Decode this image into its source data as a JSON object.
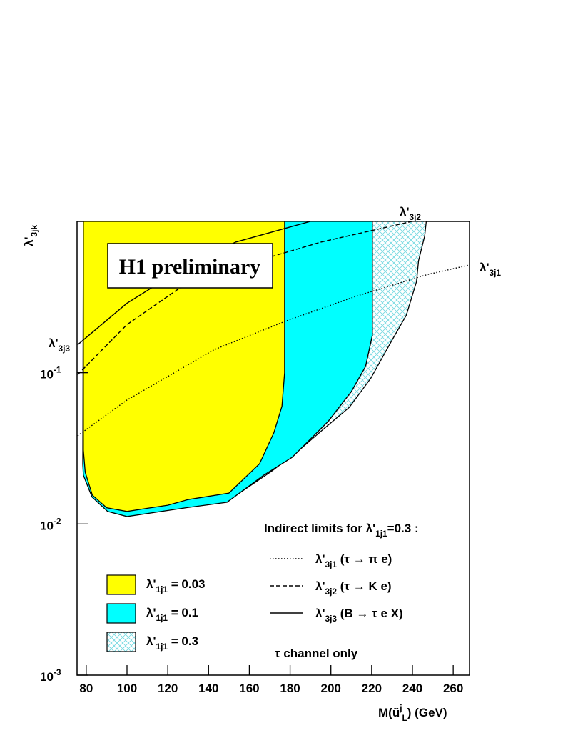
{
  "chart_data": {
    "type": "exclusion",
    "title": "H1 preliminary",
    "x_label": [
      "M(ũ",
      {
        "sup": "j"
      },
      {
        "sub": "L"
      },
      ") (GeV)"
    ],
    "y_label": [
      "λ'",
      {
        "sub": "3jk"
      }
    ],
    "xlim": [
      75.5,
      268
    ],
    "xticks": [
      80,
      100,
      120,
      140,
      160,
      180,
      200,
      220,
      240,
      260
    ],
    "ylim": [
      0.001,
      1
    ],
    "log_y": true,
    "yticks": [
      {
        "value": 0.001,
        "label": [
          "10",
          {
            "sup": "-3"
          }
        ]
      },
      {
        "value": 0.01,
        "label": [
          "10",
          {
            "sup": "-2"
          }
        ]
      },
      {
        "value": 0.1,
        "label": [
          "10",
          {
            "sup": "-1"
          }
        ]
      }
    ],
    "regions": [
      {
        "name": [
          "λ'",
          {
            "sub": "1j1"
          },
          " = 0.03"
        ],
        "color": "#ffff00",
        "hatch": false,
        "x": [
          78.6,
          78.6,
          79.5,
          83,
          90,
          100,
          110,
          120,
          130,
          150,
          165,
          172,
          176,
          177.3,
          177.3
        ],
        "y": [
          1,
          0.0308,
          0.022,
          0.0155,
          0.0128,
          0.0121,
          0.0127,
          0.0133,
          0.0145,
          0.016,
          0.025,
          0.04,
          0.06,
          0.1,
          1
        ]
      },
      {
        "name": [
          "λ'",
          {
            "sub": "1j1"
          },
          " = 0.1"
        ],
        "color": "#00ffff",
        "hatch": false,
        "x": [
          177.3,
          220.3,
          220.3,
          217,
          210,
          198.6,
          181,
          167,
          149,
          129,
          100,
          90.5,
          82.8,
          78.6,
          78.3,
          78.6
        ],
        "y": [
          1,
          1,
          0.176,
          0.11,
          0.075,
          0.0476,
          0.0276,
          0.021,
          0.0139,
          0.0128,
          0.0112,
          0.0121,
          0.0151,
          0.021,
          0.0248,
          1
        ]
      },
      {
        "name": [
          "λ'",
          {
            "sub": "1j1"
          },
          " = 0.3"
        ],
        "color": "#6fd8e0",
        "hatch": true,
        "x": [
          220.3,
          246.8,
          246,
          243,
          242,
          237,
          229.3,
          219.6,
          209,
          196.9,
          184.7,
          170.7,
          149.8,
          149,
          167,
          181,
          198.6,
          210,
          217,
          220.3
        ],
        "y": [
          1,
          1,
          0.8,
          0.55,
          0.4,
          0.24,
          0.158,
          0.092,
          0.059,
          0.043,
          0.031,
          0.0222,
          0.0143,
          0.0139,
          0.021,
          0.0276,
          0.0476,
          0.075,
          0.11,
          0.176
        ]
      }
    ],
    "lines_title": [
      "Indirect limits for λ'",
      {
        "sub": "1j1"
      },
      "=0.3 :"
    ],
    "lines": [
      {
        "name": [
          "λ'",
          {
            "sub": "3j1"
          }
        ],
        "legend": [
          "λ'",
          {
            "sub": "3j1"
          },
          " (τ → π e)"
        ],
        "dash": "dotted",
        "x": [
          75.8,
          100,
          142.8,
          177.7,
          212.6,
          247.5,
          267.7
        ],
        "y": [
          0.0383,
          0.066,
          0.142,
          0.219,
          0.321,
          0.446,
          0.514
        ]
      },
      {
        "name": [
          "λ'",
          {
            "sub": "3j2"
          }
        ],
        "legend": [
          "λ'",
          {
            "sub": "3j2"
          },
          " (τ → K e)"
        ],
        "dash": "dashed",
        "x": [
          75.8,
          100,
          125.4,
          153.3,
          195.1,
          239.8
        ],
        "y": [
          0.097,
          0.208,
          0.359,
          0.498,
          0.73,
          1
        ]
      },
      {
        "name": [
          "λ'",
          {
            "sub": "3j3"
          }
        ],
        "legend": [
          "λ'",
          {
            "sub": "3j3"
          },
          " (B → τ e X)"
        ],
        "dash": "solid",
        "x": [
          75.8,
          100,
          125.4,
          153.3,
          189.9
        ],
        "y": [
          0.153,
          0.288,
          0.471,
          0.73,
          1
        ]
      }
    ],
    "note": "τ channel only"
  }
}
